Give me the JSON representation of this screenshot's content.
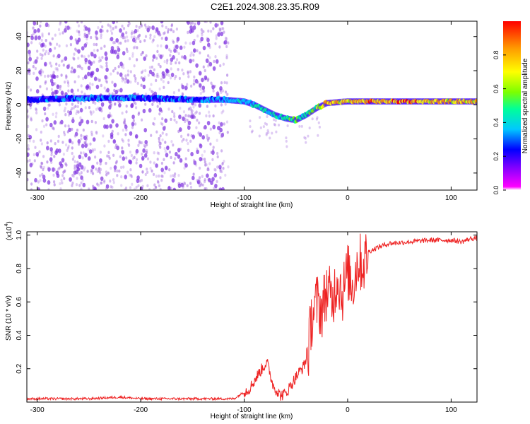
{
  "title": "C2E1.2024.308.23.35.R09",
  "colors": {
    "snr_line": "#ee2222",
    "axes": "#000000",
    "spectrogram_scatter": "#a46de0",
    "colormap": [
      "#ff00ff",
      "#7a00ff",
      "#0000ff",
      "#00c8ff",
      "#00ff9a",
      "#7cff00",
      "#ffff00",
      "#ff9a00",
      "#ff0000"
    ]
  },
  "chart_data": [
    {
      "type": "heatmap",
      "name": "spectrogram",
      "xlabel": "Height of straight line (km)",
      "ylabel": "Frequency (Hz)",
      "xlim": [
        -310,
        125
      ],
      "ylim": [
        -50,
        49
      ],
      "xticks": [
        -300,
        -200,
        -100,
        0,
        100
      ],
      "yticks": [
        -40,
        -20,
        0,
        20,
        40
      ],
      "grid": false,
      "colorbar": {
        "label": "Normalized spectral amplitude",
        "range": [
          0,
          1
        ],
        "ticks": [
          0.0,
          0.2,
          0.4,
          0.6,
          0.8
        ]
      },
      "noise_region_x": [
        -310,
        -115
      ],
      "ridge_line": {
        "x": [
          -310,
          -250,
          -200,
          -150,
          -120,
          -100,
          -90,
          -80,
          -70,
          -60,
          -50,
          -40,
          -30,
          -20,
          0,
          20,
          40,
          60,
          80,
          100,
          125
        ],
        "freq": [
          3,
          4,
          4,
          3,
          3,
          2,
          0,
          -3,
          -6,
          -8,
          -9,
          -6,
          -2,
          1,
          2,
          2,
          2,
          2,
          2,
          2,
          2
        ],
        "amplitude": [
          0.3,
          0.35,
          0.35,
          0.35,
          0.4,
          0.45,
          0.5,
          0.55,
          0.5,
          0.55,
          0.6,
          0.5,
          0.7,
          0.9,
          0.85,
          0.9,
          0.95,
          0.95,
          0.9,
          0.9,
          0.9
        ]
      }
    },
    {
      "type": "line",
      "name": "snr",
      "xlabel": "Height of straight line (km)",
      "ylabel": "SNR (10 * v/v)",
      "y_multiplier": "(x10",
      "y_multiplier_exp": "4",
      "y_multiplier_close": ")",
      "xlim": [
        -310,
        125
      ],
      "ylim": [
        0,
        1.02
      ],
      "xticks": [
        -300,
        -200,
        -100,
        0,
        100
      ],
      "yticks": [
        0.2,
        0.4,
        0.6,
        0.8,
        1.0
      ],
      "grid": false,
      "series": [
        {
          "x": [
            -310,
            -250,
            -220,
            -200,
            -150,
            -110,
            -95,
            -85,
            -78,
            -72,
            -65,
            -60,
            -50,
            -42,
            -38,
            -35,
            -30,
            -25,
            -20,
            -15,
            -10,
            -5,
            0,
            5,
            10,
            15,
            20,
            30,
            40,
            60,
            80,
            100,
            110,
            120,
            125
          ],
          "values": [
            0.02,
            0.02,
            0.03,
            0.02,
            0.02,
            0.02,
            0.08,
            0.18,
            0.24,
            0.1,
            0.04,
            0.05,
            0.15,
            0.22,
            0.3,
            0.5,
            0.6,
            0.55,
            0.68,
            0.6,
            0.75,
            0.65,
            0.78,
            0.7,
            0.85,
            0.82,
            0.9,
            0.93,
            0.95,
            0.96,
            0.97,
            0.97,
            0.96,
            0.98,
            0.98
          ]
        }
      ]
    }
  ]
}
